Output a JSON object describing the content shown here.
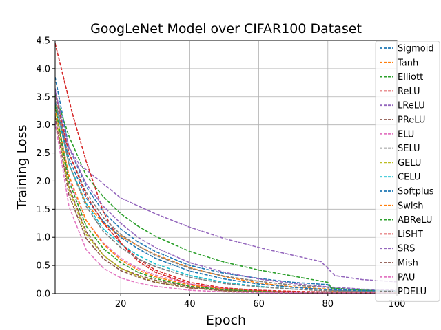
{
  "chart_data": {
    "type": "line",
    "title": "GoogLeNet Model over CIFAR100 Dataset",
    "xlabel": "Epoch",
    "ylabel": "Training Loss",
    "xlim": [
      1,
      100
    ],
    "ylim": [
      0,
      4.5
    ],
    "xticks": [
      20,
      40,
      60,
      80,
      100
    ],
    "yticks": [
      0.0,
      0.5,
      1.0,
      1.5,
      2.0,
      2.5,
      3.0,
      3.5,
      4.0,
      4.5
    ],
    "grid": true,
    "legend_position": "right",
    "series": [
      {
        "name": "Sigmoid",
        "color": "#1f77b4",
        "points": [
          [
            1,
            3.85
          ],
          [
            5,
            2.6
          ],
          [
            10,
            1.9
          ],
          [
            15,
            1.45
          ],
          [
            20,
            1.15
          ],
          [
            25,
            0.92
          ],
          [
            30,
            0.75
          ],
          [
            40,
            0.5
          ],
          [
            50,
            0.36
          ],
          [
            60,
            0.27
          ],
          [
            70,
            0.2
          ],
          [
            80,
            0.16
          ],
          [
            81,
            0.09
          ],
          [
            90,
            0.06
          ],
          [
            100,
            0.05
          ]
        ]
      },
      {
        "name": "Tanh",
        "color": "#ff7f0e",
        "points": [
          [
            1,
            3.6
          ],
          [
            5,
            2.3
          ],
          [
            10,
            1.6
          ],
          [
            15,
            1.25
          ],
          [
            20,
            1.02
          ],
          [
            25,
            0.85
          ],
          [
            30,
            0.7
          ],
          [
            40,
            0.46
          ],
          [
            50,
            0.3
          ],
          [
            60,
            0.19
          ],
          [
            70,
            0.12
          ],
          [
            80,
            0.08
          ],
          [
            81,
            0.05
          ],
          [
            90,
            0.04
          ],
          [
            100,
            0.03
          ]
        ]
      },
      {
        "name": "Elliott",
        "color": "#2ca02c",
        "points": [
          [
            1,
            3.55
          ],
          [
            5,
            2.8
          ],
          [
            10,
            2.1
          ],
          [
            15,
            1.72
          ],
          [
            20,
            1.42
          ],
          [
            25,
            1.2
          ],
          [
            30,
            1.02
          ],
          [
            40,
            0.75
          ],
          [
            50,
            0.56
          ],
          [
            60,
            0.42
          ],
          [
            70,
            0.31
          ],
          [
            80,
            0.2
          ],
          [
            81,
            0.1
          ],
          [
            90,
            0.06
          ],
          [
            100,
            0.04
          ]
        ]
      },
      {
        "name": "ReLU",
        "color": "#d62728",
        "points": [
          [
            1,
            4.45
          ],
          [
            3,
            3.95
          ],
          [
            6,
            3.2
          ],
          [
            10,
            2.35
          ],
          [
            15,
            1.45
          ],
          [
            20,
            0.9
          ],
          [
            25,
            0.58
          ],
          [
            30,
            0.38
          ],
          [
            40,
            0.17
          ],
          [
            50,
            0.08
          ],
          [
            60,
            0.05
          ],
          [
            70,
            0.03
          ],
          [
            80,
            0.02
          ],
          [
            90,
            0.015
          ],
          [
            100,
            0.01
          ]
        ]
      },
      {
        "name": "LReLU",
        "color": "#9467bd",
        "points": [
          [
            1,
            3.65
          ],
          [
            4,
            2.7
          ],
          [
            8,
            2.3
          ],
          [
            15,
            1.95
          ],
          [
            20,
            1.7
          ],
          [
            30,
            1.42
          ],
          [
            40,
            1.18
          ],
          [
            50,
            0.98
          ],
          [
            60,
            0.82
          ],
          [
            70,
            0.68
          ],
          [
            78,
            0.57
          ],
          [
            80,
            0.45
          ],
          [
            82,
            0.32
          ],
          [
            90,
            0.25
          ],
          [
            100,
            0.21
          ]
        ]
      },
      {
        "name": "PReLU",
        "color": "#8c564b",
        "points": [
          [
            1,
            3.35
          ],
          [
            5,
            1.9
          ],
          [
            10,
            1.1
          ],
          [
            15,
            0.68
          ],
          [
            20,
            0.45
          ],
          [
            25,
            0.33
          ],
          [
            30,
            0.24
          ],
          [
            40,
            0.12
          ],
          [
            50,
            0.06
          ],
          [
            60,
            0.04
          ],
          [
            70,
            0.03
          ],
          [
            80,
            0.02
          ],
          [
            90,
            0.015
          ],
          [
            100,
            0.01
          ]
        ]
      },
      {
        "name": "ELU",
        "color": "#e377c2",
        "points": [
          [
            1,
            3.3
          ],
          [
            5,
            2.05
          ],
          [
            10,
            1.3
          ],
          [
            15,
            0.9
          ],
          [
            20,
            0.63
          ],
          [
            25,
            0.45
          ],
          [
            30,
            0.33
          ],
          [
            40,
            0.17
          ],
          [
            50,
            0.09
          ],
          [
            60,
            0.05
          ],
          [
            70,
            0.03
          ],
          [
            80,
            0.02
          ],
          [
            90,
            0.015
          ],
          [
            100,
            0.01
          ]
        ]
      },
      {
        "name": "SELU",
        "color": "#7f7f7f",
        "points": [
          [
            1,
            3.5
          ],
          [
            5,
            2.5
          ],
          [
            10,
            1.8
          ],
          [
            15,
            1.35
          ],
          [
            20,
            1.05
          ],
          [
            25,
            0.85
          ],
          [
            30,
            0.68
          ],
          [
            40,
            0.45
          ],
          [
            50,
            0.31
          ],
          [
            60,
            0.22
          ],
          [
            70,
            0.15
          ],
          [
            80,
            0.11
          ],
          [
            81,
            0.06
          ],
          [
            90,
            0.04
          ],
          [
            100,
            0.03
          ]
        ]
      },
      {
        "name": "GELU",
        "color": "#bcbd22",
        "points": [
          [
            1,
            3.2
          ],
          [
            5,
            1.85
          ],
          [
            10,
            1.05
          ],
          [
            15,
            0.68
          ],
          [
            20,
            0.45
          ],
          [
            25,
            0.31
          ],
          [
            30,
            0.21
          ],
          [
            40,
            0.1
          ],
          [
            50,
            0.05
          ],
          [
            60,
            0.03
          ],
          [
            70,
            0.02
          ],
          [
            80,
            0.015
          ],
          [
            90,
            0.01
          ],
          [
            100,
            0.01
          ]
        ]
      },
      {
        "name": "CELU",
        "color": "#17becf",
        "points": [
          [
            1,
            3.4
          ],
          [
            5,
            2.3
          ],
          [
            10,
            1.6
          ],
          [
            15,
            1.15
          ],
          [
            20,
            0.88
          ],
          [
            25,
            0.68
          ],
          [
            30,
            0.53
          ],
          [
            40,
            0.32
          ],
          [
            50,
            0.2
          ],
          [
            60,
            0.13
          ],
          [
            70,
            0.08
          ],
          [
            80,
            0.05
          ],
          [
            90,
            0.03
          ],
          [
            100,
            0.02
          ]
        ]
      },
      {
        "name": "Softplus",
        "color": "#1f77b4",
        "points": [
          [
            1,
            3.4
          ],
          [
            5,
            2.4
          ],
          [
            10,
            1.7
          ],
          [
            15,
            1.28
          ],
          [
            20,
            1.0
          ],
          [
            25,
            0.8
          ],
          [
            30,
            0.63
          ],
          [
            40,
            0.4
          ],
          [
            50,
            0.26
          ],
          [
            60,
            0.17
          ],
          [
            70,
            0.11
          ],
          [
            80,
            0.07
          ],
          [
            90,
            0.05
          ],
          [
            100,
            0.04
          ]
        ]
      },
      {
        "name": "Swish",
        "color": "#ff7f0e",
        "points": [
          [
            1,
            3.3
          ],
          [
            5,
            2.1
          ],
          [
            10,
            1.3
          ],
          [
            15,
            0.88
          ],
          [
            20,
            0.6
          ],
          [
            25,
            0.42
          ],
          [
            30,
            0.3
          ],
          [
            40,
            0.15
          ],
          [
            50,
            0.08
          ],
          [
            60,
            0.05
          ],
          [
            70,
            0.03
          ],
          [
            80,
            0.02
          ],
          [
            90,
            0.015
          ],
          [
            100,
            0.01
          ]
        ]
      },
      {
        "name": "ABReLU",
        "color": "#2ca02c",
        "points": [
          [
            1,
            3.35
          ],
          [
            5,
            2.0
          ],
          [
            10,
            1.2
          ],
          [
            15,
            0.8
          ],
          [
            20,
            0.55
          ],
          [
            25,
            0.38
          ],
          [
            30,
            0.27
          ],
          [
            40,
            0.13
          ],
          [
            50,
            0.07
          ],
          [
            60,
            0.04
          ],
          [
            70,
            0.03
          ],
          [
            80,
            0.02
          ],
          [
            90,
            0.015
          ],
          [
            100,
            0.01
          ]
        ]
      },
      {
        "name": "LiSHT",
        "color": "#d62728",
        "points": [
          [
            1,
            3.6
          ],
          [
            5,
            2.5
          ],
          [
            10,
            1.75
          ],
          [
            15,
            1.25
          ],
          [
            20,
            0.9
          ],
          [
            25,
            0.62
          ],
          [
            30,
            0.42
          ],
          [
            40,
            0.2
          ],
          [
            50,
            0.1
          ],
          [
            60,
            0.06
          ],
          [
            70,
            0.04
          ],
          [
            80,
            0.03
          ],
          [
            90,
            0.02
          ],
          [
            100,
            0.015
          ]
        ]
      },
      {
        "name": "SRS",
        "color": "#9467bd",
        "points": [
          [
            1,
            3.6
          ],
          [
            5,
            2.6
          ],
          [
            10,
            1.95
          ],
          [
            15,
            1.55
          ],
          [
            20,
            1.25
          ],
          [
            25,
            1.0
          ],
          [
            30,
            0.82
          ],
          [
            40,
            0.55
          ],
          [
            50,
            0.38
          ],
          [
            60,
            0.26
          ],
          [
            70,
            0.18
          ],
          [
            80,
            0.12
          ],
          [
            90,
            0.08
          ],
          [
            100,
            0.06
          ]
        ]
      },
      {
        "name": "Mish",
        "color": "#8c564b",
        "points": [
          [
            1,
            3.15
          ],
          [
            5,
            1.75
          ],
          [
            10,
            0.98
          ],
          [
            15,
            0.62
          ],
          [
            20,
            0.41
          ],
          [
            25,
            0.29
          ],
          [
            30,
            0.2
          ],
          [
            40,
            0.1
          ],
          [
            50,
            0.05
          ],
          [
            60,
            0.03
          ],
          [
            70,
            0.02
          ],
          [
            80,
            0.015
          ],
          [
            90,
            0.01
          ],
          [
            100,
            0.01
          ]
        ]
      },
      {
        "name": "PAU",
        "color": "#e377c2",
        "points": [
          [
            1,
            3.05
          ],
          [
            5,
            1.55
          ],
          [
            10,
            0.78
          ],
          [
            15,
            0.45
          ],
          [
            20,
            0.28
          ],
          [
            25,
            0.19
          ],
          [
            30,
            0.13
          ],
          [
            40,
            0.06
          ],
          [
            50,
            0.03
          ],
          [
            60,
            0.02
          ],
          [
            70,
            0.015
          ],
          [
            80,
            0.01
          ],
          [
            90,
            0.01
          ],
          [
            100,
            0.01
          ]
        ]
      },
      {
        "name": "PDELU",
        "color": "#7f7f7f",
        "points": [
          [
            1,
            3.45
          ],
          [
            5,
            2.3
          ],
          [
            10,
            1.55
          ],
          [
            15,
            1.1
          ],
          [
            20,
            0.82
          ],
          [
            25,
            0.62
          ],
          [
            30,
            0.48
          ],
          [
            40,
            0.29
          ],
          [
            50,
            0.18
          ],
          [
            60,
            0.12
          ],
          [
            70,
            0.08
          ],
          [
            80,
            0.05
          ],
          [
            90,
            0.035
          ],
          [
            100,
            0.03
          ]
        ]
      }
    ]
  }
}
